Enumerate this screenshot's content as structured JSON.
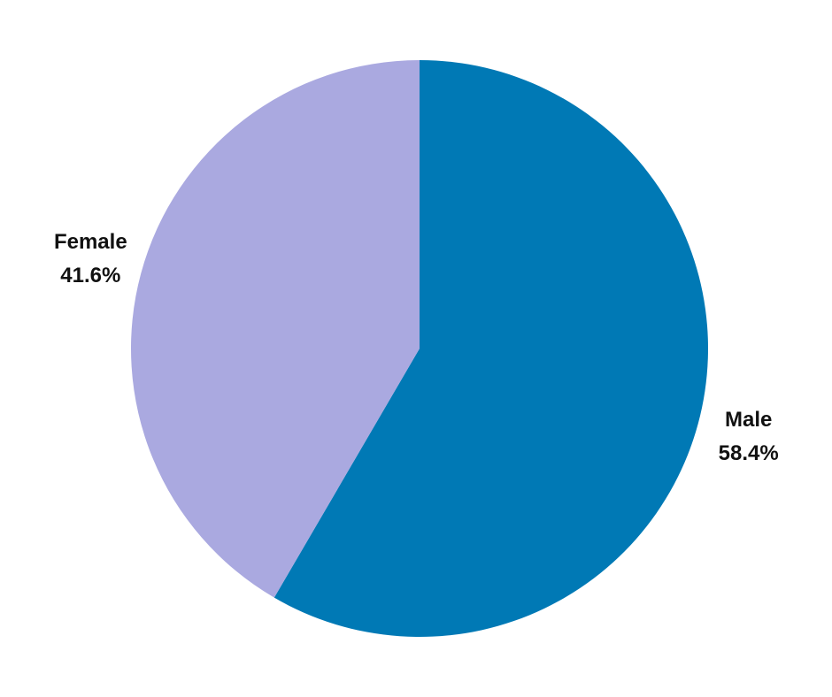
{
  "chart_data": {
    "type": "pie",
    "categories": [
      "Male",
      "Female"
    ],
    "values": [
      58.4,
      41.6
    ],
    "value_labels": [
      "58.4%",
      "41.6%"
    ],
    "colors": [
      "#0079b5",
      "#aaa9e0"
    ]
  }
}
